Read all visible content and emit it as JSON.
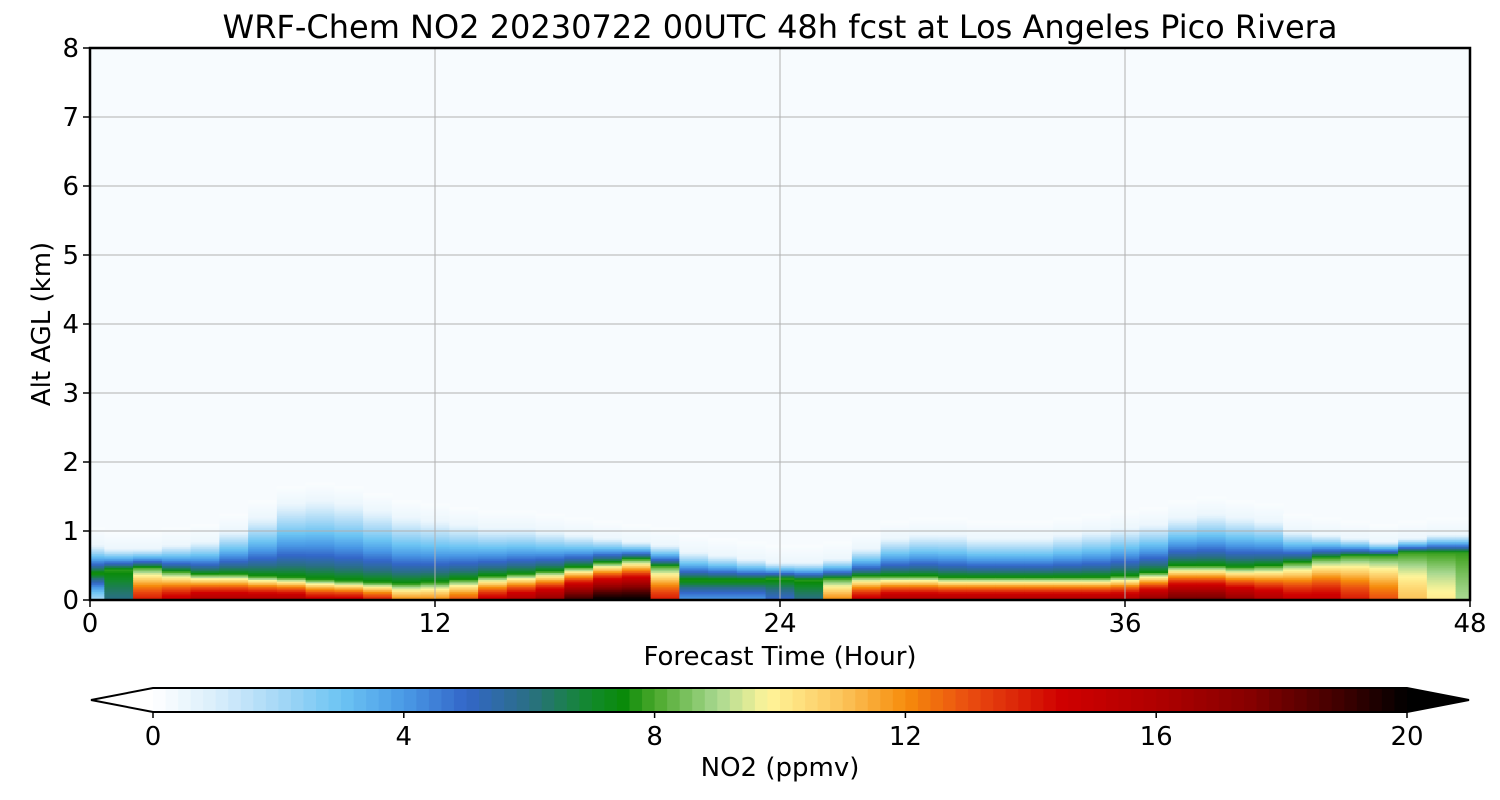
{
  "chart_data": {
    "type": "heatmap",
    "title": "WRF-Chem NO2  20230722 00UTC 48h fcst at Los Angeles Pico Rivera",
    "xlabel": "Forecast Time (Hour)",
    "ylabel": "Alt AGL (km)",
    "xlim": [
      0,
      48
    ],
    "ylim": [
      0,
      8
    ],
    "x_ticks": [
      "0",
      "12",
      "24",
      "36",
      "48"
    ],
    "y_ticks": [
      "0",
      "1",
      "2",
      "3",
      "4",
      "5",
      "6",
      "7",
      "8"
    ],
    "grid": true,
    "colorbar": {
      "label": "NO2  (ppmv)",
      "range": [
        0,
        20
      ],
      "extend": "both",
      "ticks": [
        "0",
        "4",
        "8",
        "12",
        "16",
        "20"
      ],
      "stops": [
        {
          "v": 0,
          "color": "#ffffff"
        },
        {
          "v": 1,
          "color": "#d9eefb"
        },
        {
          "v": 2,
          "color": "#a6d8f6"
        },
        {
          "v": 3,
          "color": "#6cc4f3"
        },
        {
          "v": 4,
          "color": "#4a9ae6"
        },
        {
          "v": 5,
          "color": "#3366c8"
        },
        {
          "v": 6,
          "color": "#2a6f84"
        },
        {
          "v": 7,
          "color": "#128a2a"
        },
        {
          "v": 7.5,
          "color": "#0a8a0a"
        },
        {
          "v": 8,
          "color": "#4aa82a"
        },
        {
          "v": 9,
          "color": "#a8d890"
        },
        {
          "v": 9.8,
          "color": "#fff59a"
        },
        {
          "v": 11,
          "color": "#fcc45a"
        },
        {
          "v": 12,
          "color": "#f68c0c"
        },
        {
          "v": 13,
          "color": "#ea4e10"
        },
        {
          "v": 14.5,
          "color": "#cf0000"
        },
        {
          "v": 16,
          "color": "#b00000"
        },
        {
          "v": 17.5,
          "color": "#860000"
        },
        {
          "v": 19,
          "color": "#3c0000"
        },
        {
          "v": 20,
          "color": "#000000"
        }
      ]
    },
    "times": [
      0,
      1,
      2,
      3,
      4,
      5,
      6,
      7,
      8,
      9,
      10,
      11,
      12,
      13,
      14,
      15,
      16,
      17,
      18,
      19,
      20,
      21,
      22,
      23,
      24,
      25,
      26,
      27,
      28,
      29,
      30,
      31,
      32,
      33,
      34,
      35,
      36,
      37,
      38,
      39,
      40,
      41,
      42,
      43,
      44,
      45,
      46,
      47,
      48
    ],
    "surface_no2": [
      2,
      6,
      14,
      15,
      16,
      16,
      16,
      16,
      15,
      15,
      14,
      12,
      12,
      13,
      15,
      16,
      17,
      19,
      20,
      20,
      14,
      4,
      4,
      4,
      5,
      6,
      12,
      15,
      16,
      16,
      16,
      16,
      16,
      16,
      16,
      16,
      16,
      17,
      18,
      18,
      17,
      16,
      15,
      15,
      14,
      13,
      11,
      10,
      9
    ],
    "core_top_km": [
      0.4,
      0.45,
      0.48,
      0.42,
      0.38,
      0.38,
      0.35,
      0.33,
      0.3,
      0.28,
      0.26,
      0.24,
      0.26,
      0.3,
      0.35,
      0.38,
      0.42,
      0.48,
      0.55,
      0.6,
      0.5,
      0.3,
      0.3,
      0.3,
      0.32,
      0.3,
      0.32,
      0.35,
      0.35,
      0.35,
      0.33,
      0.33,
      0.33,
      0.33,
      0.33,
      0.33,
      0.35,
      0.4,
      0.5,
      0.5,
      0.48,
      0.5,
      0.55,
      0.62,
      0.65,
      0.65,
      0.7,
      0.7,
      0.7
    ],
    "plume_top_km": [
      0.8,
      0.75,
      0.75,
      0.8,
      0.85,
      1.0,
      1.2,
      1.4,
      1.45,
      1.4,
      1.3,
      1.2,
      1.15,
      1.1,
      1.05,
      1.05,
      1.0,
      0.95,
      0.9,
      0.85,
      0.8,
      0.7,
      0.65,
      0.6,
      0.55,
      0.55,
      0.6,
      0.75,
      0.9,
      0.95,
      0.95,
      0.9,
      0.9,
      0.9,
      0.95,
      1.0,
      1.05,
      1.1,
      1.2,
      1.25,
      1.2,
      1.15,
      1.0,
      0.95,
      0.9,
      0.85,
      0.9,
      0.95,
      0.95
    ]
  }
}
